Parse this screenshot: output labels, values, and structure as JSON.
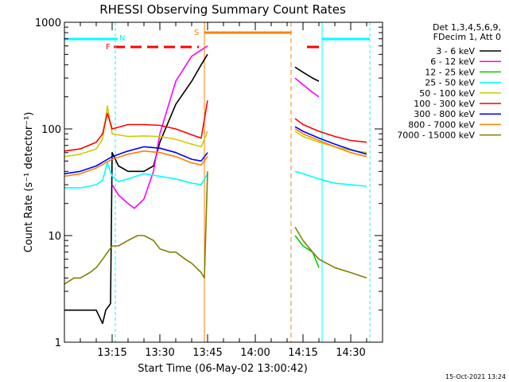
{
  "chart_data": {
    "type": "line",
    "title": "RHESSI Observing Summary Count Rates",
    "xlabel": "Start Time (06-May-02 13:00:42)",
    "ylabel": "Count Rate (s⁻¹ detector⁻¹)",
    "yscale": "log",
    "ylim": [
      1,
      1000
    ],
    "xlim_minutes": [
      0,
      100
    ],
    "x_ticks": [
      {
        "t": 15,
        "label": "13:15"
      },
      {
        "t": 30,
        "label": "13:30"
      },
      {
        "t": 45,
        "label": "13:45"
      },
      {
        "t": 60,
        "label": "14:00"
      },
      {
        "t": 75,
        "label": "14:15"
      },
      {
        "t": 90,
        "label": "14:30"
      }
    ],
    "y_ticks": [
      {
        "v": 1,
        "label": "1"
      },
      {
        "v": 10,
        "label": "10"
      },
      {
        "v": 100,
        "label": "100"
      },
      {
        "v": 1000,
        "label": "1000"
      }
    ],
    "legend_header": [
      "Det 1,3,4,5,6,9,",
      "FDecim 1, Att 0"
    ],
    "legend_position": "right",
    "timestamp": "15-Oct-2021 13:24",
    "flag_labels": {
      "N": "N",
      "F": "F",
      "S": "S"
    },
    "series": [
      {
        "name": "3 - 6 keV",
        "color": "#000000",
        "x": [
          0,
          10,
          12,
          13,
          14.5,
          15,
          17,
          20,
          25,
          28,
          30,
          35,
          40,
          43,
          45
        ],
        "y": [
          2,
          2,
          1.5,
          2,
          2.3,
          60,
          45,
          40,
          40,
          45,
          75,
          170,
          280,
          400,
          500
        ]
      },
      {
        "name": "3 - 6 keV",
        "color": "#000000",
        "x": [
          72.5,
          75,
          78,
          80
        ],
        "y": [
          380,
          340,
          300,
          280
        ]
      },
      {
        "name": "6 - 12 keV",
        "color": "#ff00ff",
        "x": [
          15,
          17,
          20,
          22,
          25,
          28,
          30,
          35,
          40,
          43,
          45
        ],
        "y": [
          30,
          24,
          20,
          18,
          22,
          40,
          90,
          280,
          480,
          550,
          600
        ]
      },
      {
        "name": "6 - 12 keV",
        "color": "#ff00ff",
        "x": [
          72.5,
          75,
          78,
          80
        ],
        "y": [
          300,
          260,
          220,
          200
        ]
      },
      {
        "name": "12 - 25 keV",
        "color": "#00cc00",
        "x": [
          72.5,
          75,
          78,
          80
        ],
        "y": [
          10,
          8,
          7,
          5
        ]
      },
      {
        "name": "25 - 50 keV",
        "color": "#00ffff",
        "x": [
          0,
          5,
          10,
          12,
          13.5,
          15,
          17,
          20,
          25,
          30,
          35,
          40,
          43,
          45
        ],
        "y": [
          28,
          28,
          30,
          33,
          48,
          36,
          32,
          34,
          38,
          36,
          34,
          31,
          30,
          38
        ]
      },
      {
        "name": "25 - 50 keV",
        "color": "#00ffff",
        "x": [
          72.5,
          75,
          80,
          85,
          90,
          95
        ],
        "y": [
          40,
          38,
          34,
          31,
          30,
          29
        ]
      },
      {
        "name": "50 - 100 keV",
        "color": "#cccc00",
        "x": [
          0,
          5,
          10,
          12,
          13.5,
          15,
          20,
          25,
          30,
          35,
          40,
          43,
          45
        ],
        "y": [
          55,
          58,
          65,
          80,
          165,
          90,
          85,
          86,
          85,
          80,
          72,
          68,
          95
        ]
      },
      {
        "name": "50 - 100 keV",
        "color": "#cccc00",
        "x": [
          72.5,
          75,
          80,
          85,
          90,
          95
        ],
        "y": [
          95,
          85,
          75,
          68,
          63,
          60
        ]
      },
      {
        "name": "100 - 300 keV",
        "color": "#ff0000",
        "x": [
          0,
          5,
          10,
          12,
          13.5,
          15,
          20,
          25,
          30,
          35,
          40,
          43,
          45
        ],
        "y": [
          62,
          65,
          75,
          90,
          140,
          100,
          110,
          110,
          108,
          100,
          88,
          82,
          185
        ]
      },
      {
        "name": "100 - 300 keV",
        "color": "#ff0000",
        "x": [
          72.5,
          75,
          80,
          85,
          90,
          95
        ],
        "y": [
          125,
          110,
          95,
          85,
          78,
          75
        ]
      },
      {
        "name": "300 - 800 keV",
        "color": "#0000ff",
        "x": [
          0,
          5,
          10,
          15,
          20,
          25,
          30,
          35,
          40,
          43,
          45
        ],
        "y": [
          38,
          40,
          45,
          55,
          62,
          68,
          66,
          60,
          52,
          50,
          60
        ]
      },
      {
        "name": "300 - 800 keV",
        "color": "#0000ff",
        "x": [
          72.5,
          75,
          80,
          85,
          90,
          95
        ],
        "y": [
          105,
          95,
          82,
          72,
          64,
          58
        ]
      },
      {
        "name": "800 - 7000 keV",
        "color": "#ff8000",
        "x": [
          0,
          5,
          10,
          15,
          20,
          25,
          30,
          35,
          40,
          43,
          45
        ],
        "y": [
          36,
          38,
          43,
          52,
          58,
          62,
          60,
          55,
          48,
          46,
          55
        ]
      },
      {
        "name": "800 - 7000 keV",
        "color": "#ff8000",
        "x": [
          72.5,
          75,
          80,
          85,
          90,
          95
        ],
        "y": [
          100,
          90,
          78,
          68,
          60,
          55
        ]
      },
      {
        "name": "7000 - 15000 keV",
        "color": "#808000",
        "x": [
          0,
          3,
          5,
          8,
          10,
          12,
          15,
          17,
          20,
          23,
          25,
          28,
          30,
          33,
          35,
          38,
          40,
          43,
          44,
          45
        ],
        "y": [
          3.5,
          4,
          4,
          4.5,
          5,
          6,
          8,
          8,
          9,
          10,
          10,
          9,
          7.5,
          7,
          7,
          6,
          5.5,
          4.5,
          4,
          40
        ]
      },
      {
        "name": "7000 - 15000 keV",
        "color": "#808000",
        "x": [
          72.5,
          75,
          78,
          80,
          85,
          90,
          95
        ],
        "y": [
          12,
          9,
          7,
          6,
          5,
          4.5,
          4
        ]
      }
    ]
  }
}
